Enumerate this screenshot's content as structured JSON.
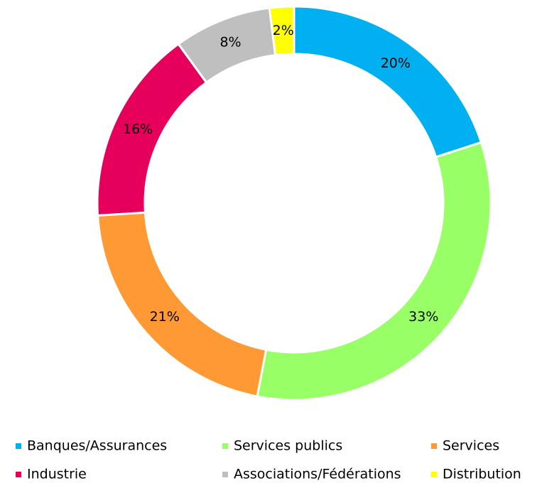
{
  "chart_data": {
    "type": "donut",
    "categories": [
      "Banques/Assurances",
      "Services publics",
      "Services",
      "Industrie",
      "Associations/Fédérations",
      "Distribution"
    ],
    "values": [
      20,
      33,
      21,
      16,
      8,
      2
    ],
    "value_labels": [
      "20%",
      "33%",
      "21%",
      "16%",
      "8%",
      "2%"
    ],
    "colors": [
      "#00b0f0",
      "#99ff66",
      "#ff9933",
      "#e6005c",
      "#bfbfbf",
      "#ffff00"
    ],
    "legend": "bottom"
  }
}
